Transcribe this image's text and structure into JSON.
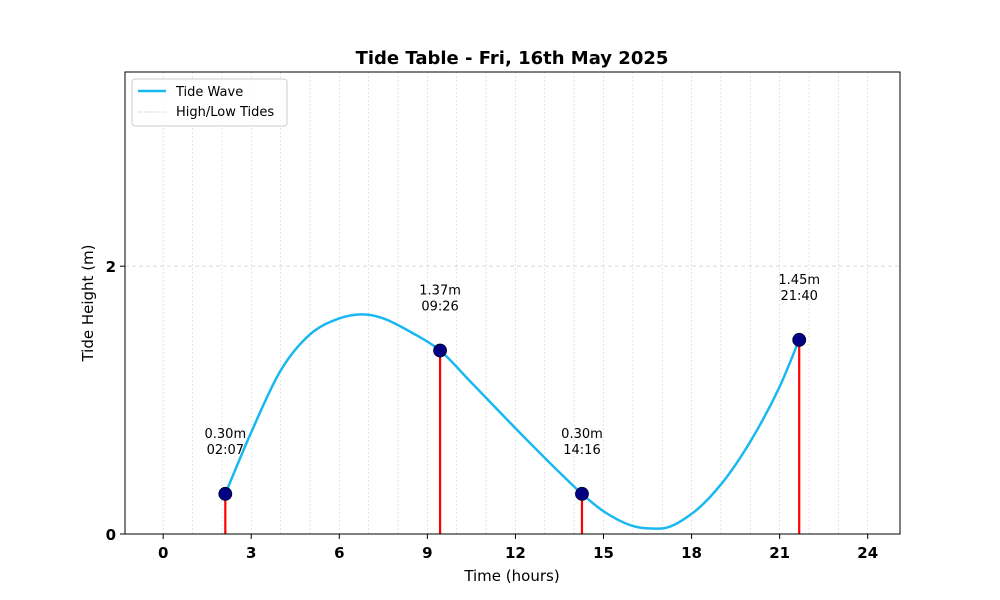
{
  "chart_data": {
    "type": "line",
    "title": "Tide Table - Fri, 16th May 2025",
    "xlabel": "Time (hours)",
    "ylabel": "Tide Height (m)",
    "xlim": [
      -1.3,
      25.1
    ],
    "ylim": [
      0,
      3.45
    ],
    "x_ticks": [
      0,
      3,
      6,
      9,
      12,
      15,
      18,
      21,
      24
    ],
    "x_tick_labels": [
      "0",
      "3",
      "6",
      "9",
      "12",
      "15",
      "18",
      "21",
      "24"
    ],
    "y_ticks": [
      0,
      2
    ],
    "y_tick_labels": [
      "0",
      "2"
    ],
    "minor_x_grid_hours": [
      0,
      1,
      2,
      3,
      4,
      5,
      6,
      7,
      8,
      9,
      10,
      11,
      12,
      13,
      14,
      15,
      16,
      17,
      18,
      19,
      20,
      21,
      22,
      23,
      24
    ],
    "grid": true,
    "legend_position": "upper-left",
    "legend": [
      {
        "label": "Tide Wave",
        "style": "line",
        "color": "#1ab8f0"
      },
      {
        "label": "High/Low Tides",
        "style": "dotted",
        "color": "#bbbbbb"
      }
    ],
    "series": [
      {
        "name": "Tide Wave",
        "color": "#1ab8f0",
        "x": [
          2.117,
          3,
          4,
          5,
          6,
          6.8,
          7.5,
          8.5,
          9.433,
          10.5,
          12,
          13.5,
          14.267,
          15,
          16,
          16.9,
          18,
          19,
          20,
          21,
          21.667
        ],
        "y": [
          0.3,
          0.76,
          1.22,
          1.49,
          1.61,
          1.64,
          1.61,
          1.5,
          1.37,
          1.13,
          0.79,
          0.46,
          0.3,
          0.17,
          0.06,
          0.04,
          0.15,
          0.37,
          0.69,
          1.1,
          1.45
        ]
      }
    ],
    "tide_points": [
      {
        "time": 2.117,
        "height": 0.3,
        "height_label": "0.30m",
        "time_label": "02:07"
      },
      {
        "time": 9.433,
        "height": 1.37,
        "height_label": "1.37m",
        "time_label": "09:26"
      },
      {
        "time": 14.267,
        "height": 0.3,
        "height_label": "0.30m",
        "time_label": "14:16"
      },
      {
        "time": 21.667,
        "height": 1.45,
        "height_label": "1.45m",
        "time_label": "21:40"
      }
    ],
    "colors": {
      "wave": "#1ab8f0",
      "marker": "#000080",
      "stem": "#ff0000",
      "grid": "#d3d3d3"
    }
  }
}
